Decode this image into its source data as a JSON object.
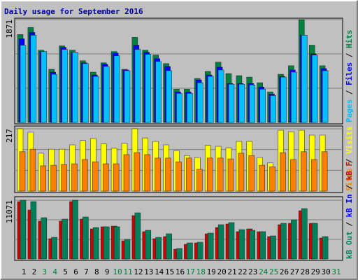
{
  "title": "Daily usage for September 2016",
  "chart_data": [
    {
      "type": "bar",
      "ylim": [
        0,
        1871
      ],
      "yticks": [
        1871
      ],
      "legend_separator": "/",
      "series": [
        {
          "name": "Hits",
          "color": "#008040",
          "values": [
            1600,
            1729,
            1316,
            968,
            1394,
            1316,
            1123,
            916,
            1084,
            1290,
            968,
            1548,
            1316,
            1226,
            1071,
            606,
            606,
            800,
            929,
            1097,
            890,
            852,
            826,
            723,
            555,
            877,
            1032,
            1871,
            1406,
            1032,
            null
          ]
        },
        {
          "name": "Files",
          "color": "#0000ff",
          "values": [
            1522,
            1639,
            1290,
            916,
            1368,
            1277,
            1084,
            865,
            1058,
            1264,
            955,
            1406,
            1277,
            1161,
            1019,
            555,
            555,
            774,
            865,
            1006,
            710,
            710,
            710,
            645,
            516,
            839,
            955,
            1587,
            1251,
            981,
            null
          ]
        },
        {
          "name": "Pages",
          "color": "#00c0ff",
          "values": [
            1406,
            1587,
            1290,
            877,
            1329,
            1277,
            1071,
            839,
            1019,
            1213,
            942,
            1329,
            1239,
            1110,
            942,
            529,
            529,
            723,
            839,
            955,
            697,
            697,
            684,
            606,
            490,
            826,
            916,
            1587,
            1226,
            942,
            null
          ]
        }
      ]
    },
    {
      "type": "bar",
      "ylim": [
        0,
        217
      ],
      "yticks": [
        217
      ],
      "legend_separator": "/",
      "series": [
        {
          "name": "Visits",
          "color": "#ffff00",
          "values": [
            217,
            205,
            132,
            146,
            146,
            161,
            176,
            183,
            164,
            149,
            166,
            217,
            185,
            173,
            161,
            141,
            124,
            117,
            159,
            156,
            151,
            173,
            173,
            117,
            98,
            212,
            207,
            212,
            195,
            195,
            null
          ]
        },
        {
          "name": "Sites",
          "color": "#ff8000",
          "values": [
            137,
            146,
            88,
            90,
            93,
            95,
            110,
            102,
            95,
            95,
            127,
            134,
            127,
            115,
            115,
            102,
            115,
            76,
            115,
            115,
            112,
            132,
            124,
            90,
            85,
            134,
            110,
            137,
            110,
            137,
            null
          ]
        }
      ]
    },
    {
      "type": "bar",
      "ylim": [
        0,
        11071
      ],
      "yticks": [
        11071
      ],
      "legend_separator": "/",
      "categories": [
        "1",
        "2",
        "3",
        "4",
        "5",
        "6",
        "7",
        "8",
        "9",
        "10",
        "11",
        "12",
        "13",
        "14",
        "15",
        "16",
        "17",
        "18",
        "19",
        "20",
        "21",
        "22",
        "23",
        "24",
        "25",
        "26",
        "27",
        "28",
        "29",
        "30",
        "31"
      ],
      "category_colors": [
        "#000000",
        "#000000",
        "#008040",
        "#008040",
        "#000000",
        "#000000",
        "#000000",
        "#000000",
        "#000000",
        "#008040",
        "#008040",
        "#000000",
        "#000000",
        "#000000",
        "#000000",
        "#000000",
        "#008040",
        "#008040",
        "#000000",
        "#000000",
        "#000000",
        "#000000",
        "#000000",
        "#008040",
        "#008040",
        "#000000",
        "#000000",
        "#000000",
        "#000000",
        "#000000",
        "#008040"
      ],
      "series": [
        {
          "name": "kB F",
          "color": "#d00000",
          "values": [
            10808,
            9227,
            7118,
            3822,
            7118,
            10808,
            7513,
            5668,
            6063,
            6195,
            3427,
            8172,
            5141,
            3822,
            4218,
            1845,
            2768,
            3031,
            4745,
            5932,
            6590,
            5141,
            5668,
            5141,
            4218,
            6459,
            6722,
            9095,
            6722,
            3954,
            null
          ]
        },
        {
          "name": "kB In",
          "color": "#0000ff",
          "values": [
            null,
            null,
            null,
            null,
            null,
            null,
            null,
            null,
            null,
            null,
            null,
            null,
            null,
            null,
            null,
            null,
            null,
            null,
            null,
            null,
            null,
            null,
            null,
            null,
            null,
            null,
            null,
            null,
            null,
            null,
            null
          ]
        },
        {
          "name": "kB Out",
          "color": "#00805a",
          "values": [
            11071,
            10808,
            7777,
            4086,
            7513,
            11071,
            7909,
            5932,
            6063,
            6063,
            3690,
            8699,
            5404,
            4086,
            4745,
            1977,
            3031,
            3163,
            4877,
            6459,
            6854,
            5536,
            5404,
            5141,
            4350,
            6722,
            7381,
            9490,
            6722,
            4218,
            null
          ]
        }
      ]
    }
  ]
}
